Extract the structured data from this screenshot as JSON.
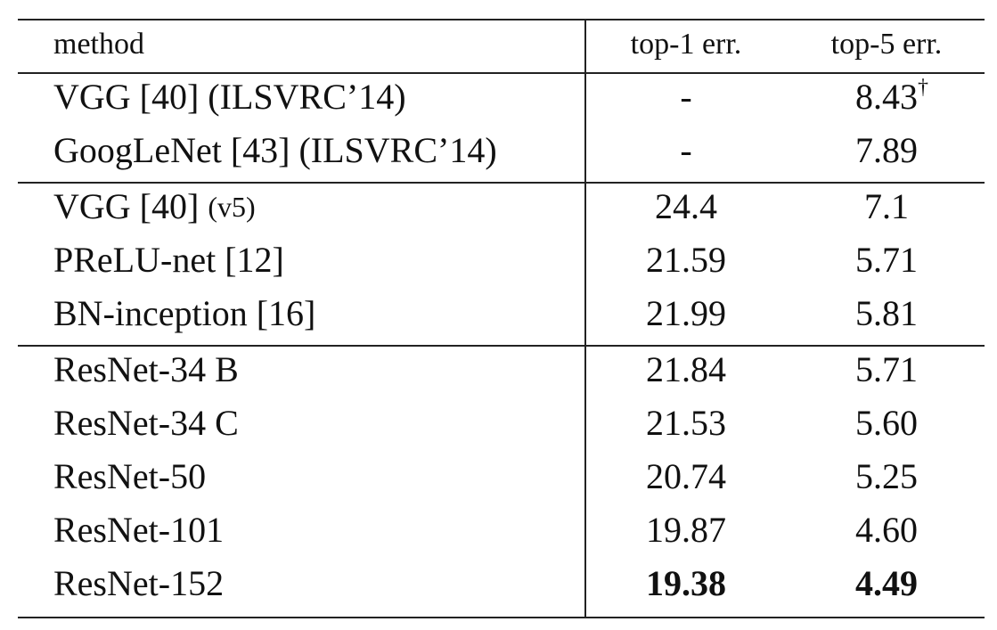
{
  "table": {
    "header": [
      "method",
      "top-1 err.",
      "top-5 err."
    ],
    "groups": [
      {
        "rows": [
          {
            "cells": [
              "VGG [40] (ILSVRC’14)",
              "-",
              "8.43"
            ],
            "top5_sup": "†"
          },
          {
            "cells": [
              "GoogLeNet [43] (ILSVRC’14)",
              "-",
              "7.89"
            ]
          }
        ]
      },
      {
        "rows": [
          {
            "cells": [
              "VGG [40]",
              "24.4",
              "7.1"
            ],
            "method_note": "(v5)"
          },
          {
            "cells": [
              "PReLU-net [12]",
              "21.59",
              "5.71"
            ]
          },
          {
            "cells": [
              "BN-inception [16]",
              "21.99",
              "5.81"
            ]
          }
        ]
      },
      {
        "rows": [
          {
            "cells": [
              "ResNet-34 B",
              "21.84",
              "5.71"
            ]
          },
          {
            "cells": [
              "ResNet-34 C",
              "21.53",
              "5.60"
            ]
          },
          {
            "cells": [
              "ResNet-50",
              "20.74",
              "5.25"
            ]
          },
          {
            "cells": [
              "ResNet-101",
              "19.87",
              "4.60"
            ]
          },
          {
            "cells": [
              "ResNet-152",
              "19.38",
              "4.49"
            ],
            "bold_values": true
          }
        ]
      }
    ]
  }
}
